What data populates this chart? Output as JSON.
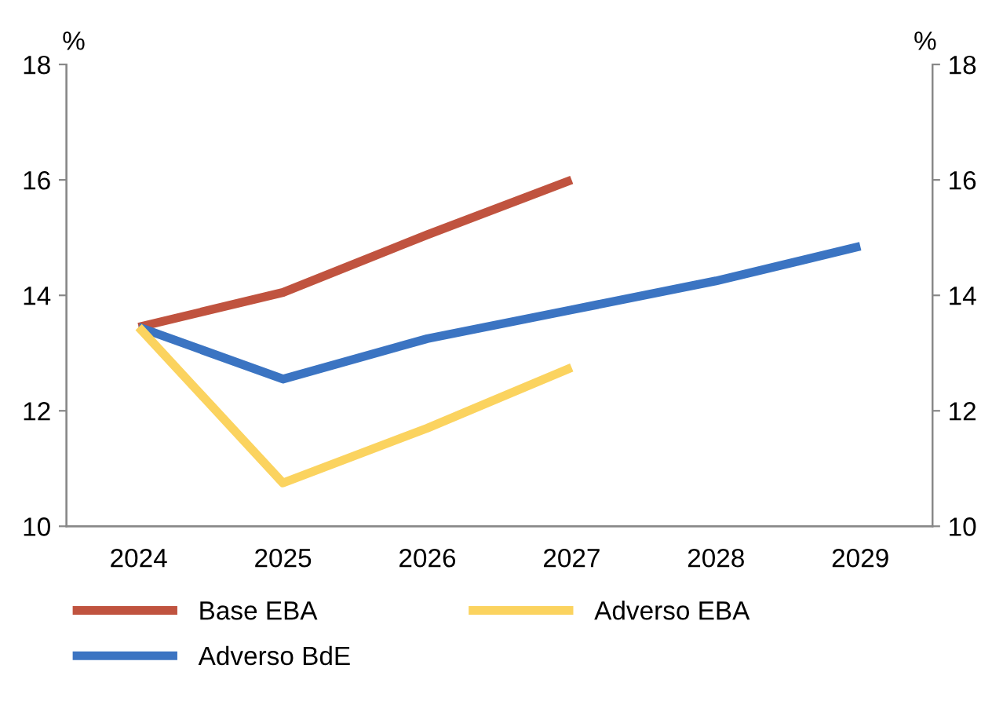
{
  "chart_data": {
    "type": "line",
    "ylabel": "%",
    "y2label": "%",
    "categories": [
      "2024",
      "2025",
      "2026",
      "2027",
      "2028",
      "2029"
    ],
    "series": [
      {
        "name": "Base EBA",
        "color": "#c0533f",
        "values": [
          13.45,
          14.05,
          15.05,
          16.0,
          null,
          null
        ]
      },
      {
        "name": "Adverso BdE",
        "color": "#3b74c2",
        "values": [
          13.45,
          12.55,
          13.25,
          13.75,
          14.25,
          14.85
        ]
      },
      {
        "name": "Adverso EBA",
        "color": "#fbd35f",
        "values": [
          13.45,
          10.75,
          11.7,
          12.75,
          null,
          null
        ]
      }
    ],
    "ylim": [
      10,
      18
    ],
    "yticks": [
      10,
      12,
      14,
      16,
      18
    ],
    "y2lim": [
      10,
      18
    ],
    "y2ticks": [
      10,
      12,
      14,
      16,
      18
    ],
    "grid": false,
    "legend": "bottom",
    "marker": "none",
    "line_style": "solid"
  }
}
